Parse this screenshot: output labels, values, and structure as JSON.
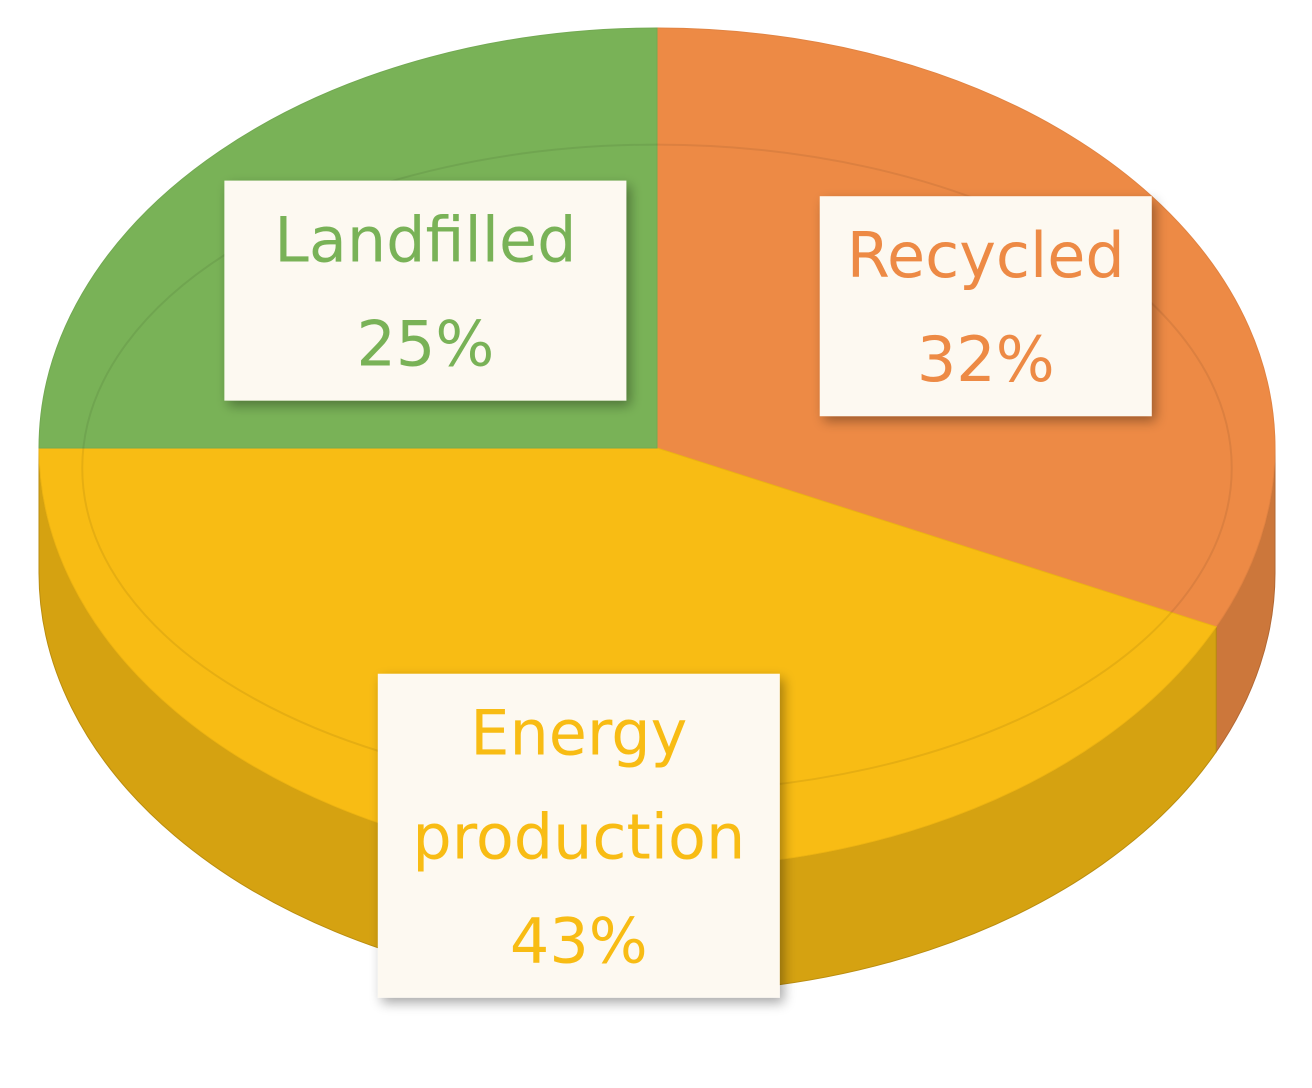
{
  "chart_data": {
    "type": "pie",
    "title": "",
    "style": "3d-tilted",
    "slices": [
      {
        "label": "Recycled",
        "value": 32,
        "value_label": "32%",
        "color": "#ED8A45"
      },
      {
        "label": "Energy production",
        "value": 43,
        "value_label": "43%",
        "color": "#F8BC14"
      },
      {
        "label": "Landfilled",
        "value": 25,
        "value_label": "25%",
        "color": "#79B257"
      }
    ],
    "start": "12 o'clock",
    "direction": "clockwise",
    "data_labels": "boxed, white background, slice-colored text"
  }
}
